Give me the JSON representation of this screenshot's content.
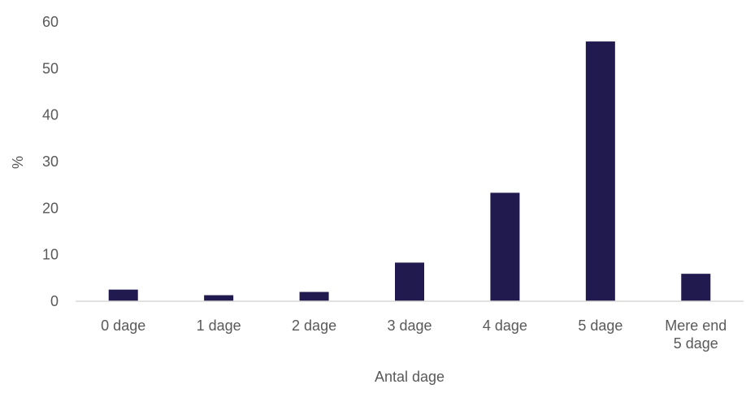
{
  "chart_data": {
    "type": "bar",
    "title": "",
    "xlabel": "Antal dage",
    "ylabel": "%",
    "categories": [
      [
        "0 dage"
      ],
      [
        "1 dage"
      ],
      [
        "2 dage"
      ],
      [
        "3 dage"
      ],
      [
        "4 dage"
      ],
      [
        "5 dage"
      ],
      [
        "Mere end",
        "5 dage"
      ]
    ],
    "values": [
      2.5,
      1.3,
      2.0,
      8.3,
      23.3,
      55.8,
      5.9
    ],
    "ylim": [
      0,
      60
    ],
    "yticks": [
      0,
      10,
      20,
      30,
      40,
      50,
      60
    ],
    "grid": false,
    "legend": "none",
    "colors": {
      "bar": "#201a4f",
      "axis": "#d9d9d9",
      "text": "#595959"
    }
  }
}
